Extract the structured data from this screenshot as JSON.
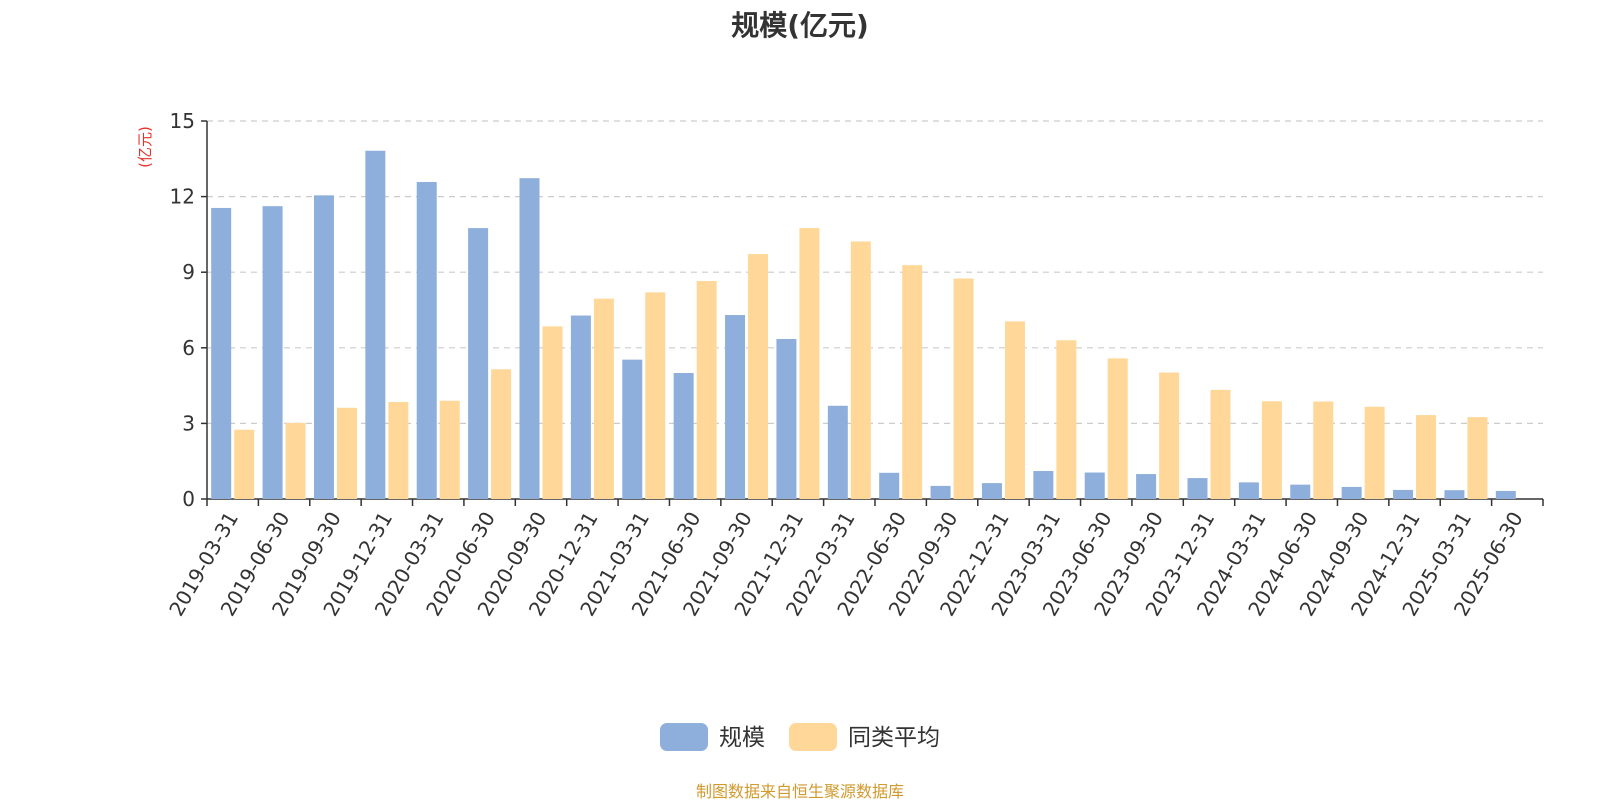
{
  "chart_data": {
    "type": "bar",
    "title": "规模(亿元)",
    "ylabel": "(亿元)",
    "xlabel": "",
    "ylim": [
      0,
      15
    ],
    "yticks": [
      0,
      3,
      6,
      9,
      12,
      15
    ],
    "grid": true,
    "legend_position": "bottom-center",
    "categories": [
      "2019-03-31",
      "2019-06-30",
      "2019-09-30",
      "2019-12-31",
      "2020-03-31",
      "2020-06-30",
      "2020-09-30",
      "2020-12-31",
      "2021-03-31",
      "2021-06-30",
      "2021-09-30",
      "2021-12-31",
      "2022-03-31",
      "2022-06-30",
      "2022-09-30",
      "2022-12-31",
      "2023-03-31",
      "2023-06-30",
      "2023-09-30",
      "2023-12-31",
      "2024-03-31",
      "2024-06-30",
      "2024-09-30",
      "2024-12-31",
      "2025-03-31",
      "2025-06-30"
    ],
    "series": [
      {
        "name": "规模",
        "color": "#8eaedb",
        "values": [
          11.55,
          11.62,
          12.05,
          13.82,
          12.58,
          10.75,
          12.73,
          7.28,
          5.53,
          5.0,
          7.3,
          6.35,
          3.7,
          1.04,
          0.52,
          0.63,
          1.11,
          1.05,
          0.99,
          0.83,
          0.66,
          0.57,
          0.48,
          0.36,
          0.35,
          0.32
        ]
      },
      {
        "name": "同类平均",
        "color": "#ffd899",
        "values": [
          2.75,
          3.02,
          3.62,
          3.85,
          3.9,
          5.15,
          6.85,
          7.95,
          8.2,
          8.65,
          9.72,
          10.75,
          10.22,
          9.28,
          8.75,
          7.05,
          6.3,
          5.58,
          5.02,
          4.33,
          3.88,
          3.87,
          3.66,
          3.33,
          3.25,
          null
        ]
      }
    ]
  },
  "footer": {
    "source": "制图数据来自恒生聚源数据库"
  }
}
